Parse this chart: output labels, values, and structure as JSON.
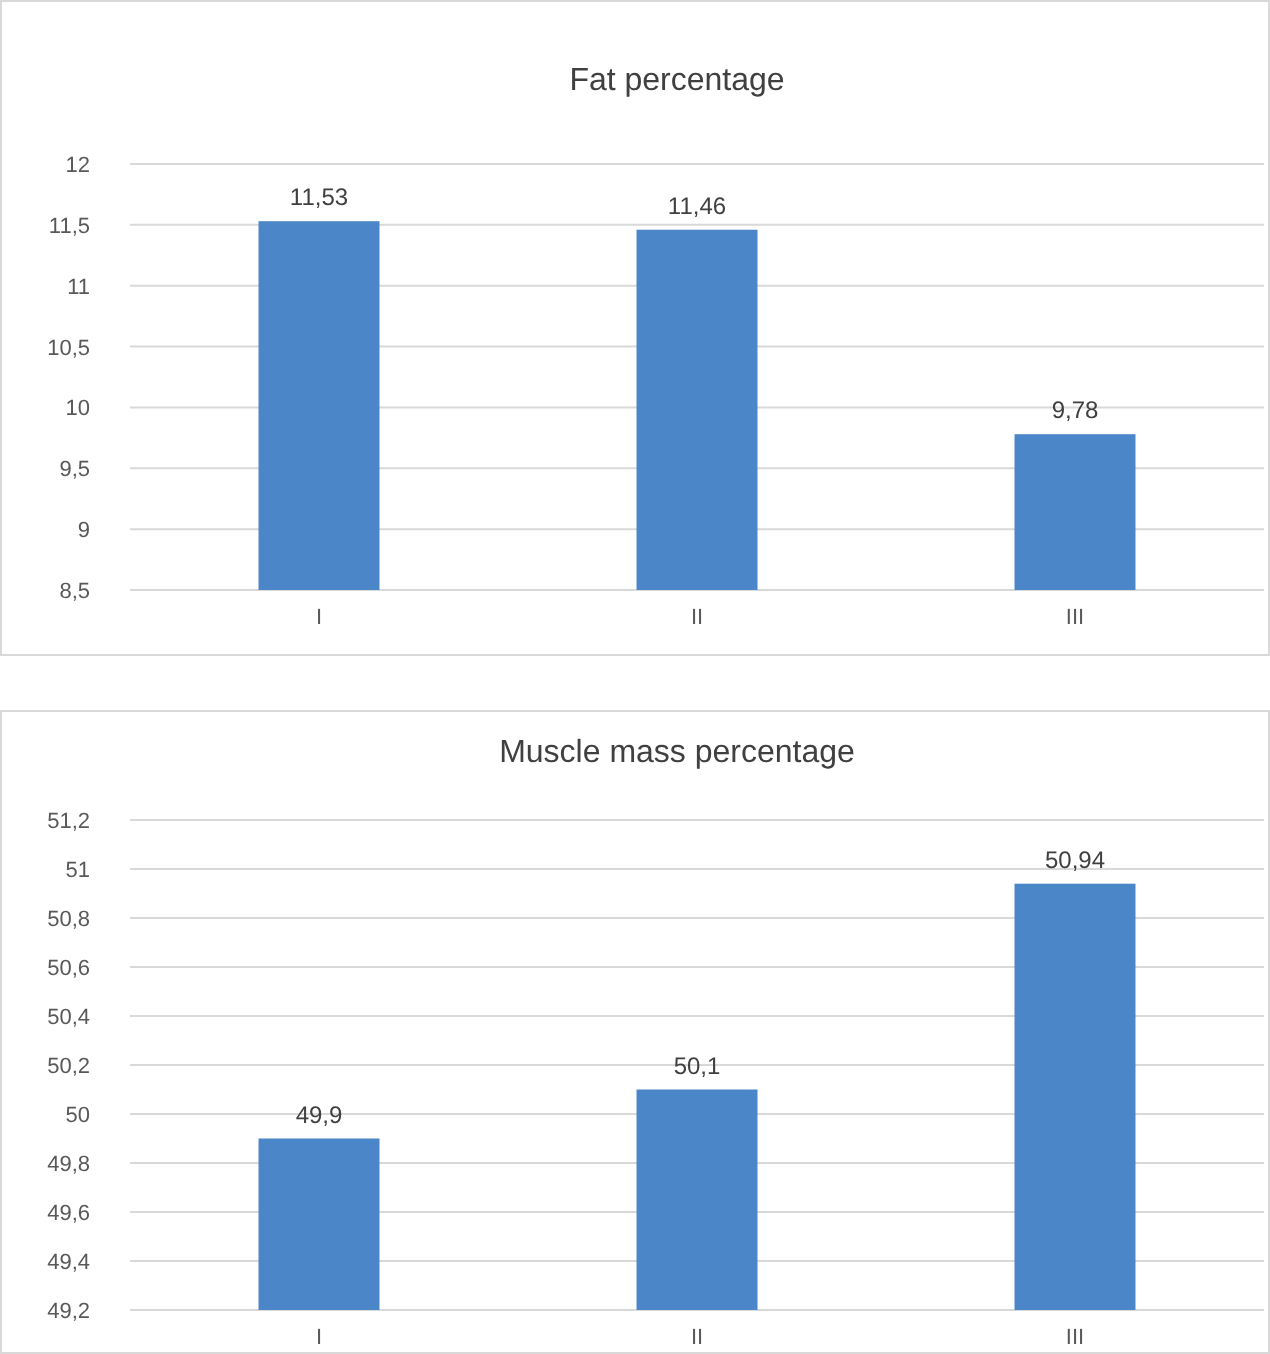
{
  "chart_data": [
    {
      "type": "bar",
      "title": "Fat percentage",
      "categories": [
        "I",
        "II",
        "III"
      ],
      "values": [
        11.53,
        11.46,
        9.78
      ],
      "value_labels": [
        "11,53",
        "11,46",
        "9,78"
      ],
      "color": "#4a86c8",
      "ylim": [
        8.5,
        12
      ],
      "yticks": [
        {
          "value": 8.5,
          "label": "8,5"
        },
        9,
        {
          "value": 9.5,
          "label": "9,5"
        },
        10,
        {
          "value": 10.5,
          "label": "10,5"
        },
        11,
        {
          "value": 11.5,
          "label": "11,5"
        },
        12
      ],
      "grid": "y"
    },
    {
      "type": "bar",
      "title": "Muscle mass percentage",
      "categories": [
        "I",
        "II",
        "III"
      ],
      "values": [
        49.9,
        50.1,
        50.94
      ],
      "value_labels": [
        "49,9",
        "50,1",
        "50,94"
      ],
      "color": "#4a86c8",
      "ylim": [
        49.2,
        51.2
      ],
      "yticks": [
        {
          "value": 49.2,
          "label": "49,2"
        },
        {
          "value": 49.4,
          "label": "49,4"
        },
        {
          "value": 49.6,
          "label": "49,6"
        },
        {
          "value": 49.8,
          "label": "49,8"
        },
        50,
        {
          "value": 50.2,
          "label": "50,2"
        },
        {
          "value": 50.4,
          "label": "50,4"
        },
        {
          "value": 50.6,
          "label": "50,6"
        },
        {
          "value": 50.8,
          "label": "50,8"
        },
        51,
        {
          "value": 51.2,
          "label": "51,2"
        }
      ],
      "grid": "y"
    }
  ]
}
